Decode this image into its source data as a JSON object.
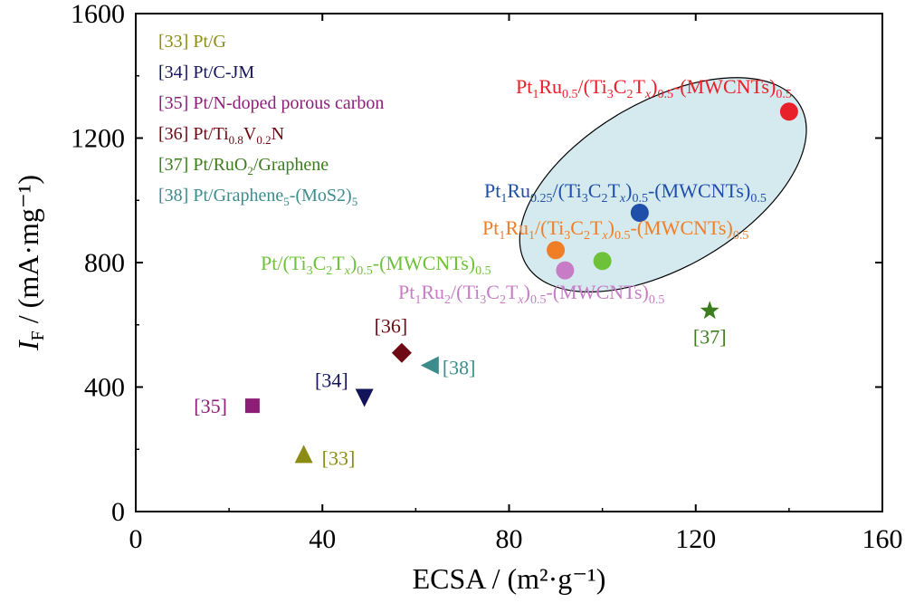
{
  "chart_data": {
    "type": "scatter",
    "title": "",
    "xlabel": "ECSA / (m²·g⁻¹)",
    "ylabel": "I_F / (mA·mg⁻¹)",
    "xlim": [
      0,
      160
    ],
    "ylim": [
      0,
      1600
    ],
    "x_ticks": [
      "0",
      "40",
      "80",
      "120",
      "160"
    ],
    "y_ticks": [
      "0",
      "400",
      "800",
      "1200",
      "1600"
    ],
    "grid": false,
    "legend_position": "top-left",
    "legend": [
      {
        "ref": "[33]",
        "name": "Pt/G",
        "color": "#8c8c14"
      },
      {
        "ref": "[34]",
        "name": "Pt/C-JM",
        "color": "#14145a"
      },
      {
        "ref": "[35]",
        "name": "Pt/N-doped porous carbon",
        "color": "#8c1e78"
      },
      {
        "ref": "[36]",
        "name": "Pt/Ti0.8V0.2N",
        "color": "#6e0a14"
      },
      {
        "ref": "[37]",
        "name": "Pt/RuO2/Graphene",
        "color": "#3c7d1e"
      },
      {
        "ref": "[38]",
        "name": "Pt/Graphene5-(MoS2)5",
        "color": "#3c8c8c"
      }
    ],
    "reference_points": [
      {
        "ref": "[33]",
        "x": 36,
        "y": 185,
        "marker": "triangle-up",
        "color": "#8c8c14",
        "label": "[33]"
      },
      {
        "ref": "[34]",
        "x": 49,
        "y": 365,
        "marker": "triangle-down",
        "color": "#14145a",
        "label": "[34]"
      },
      {
        "ref": "[35]",
        "x": 25,
        "y": 340,
        "marker": "square",
        "color": "#8c1e78",
        "label": "[35]"
      },
      {
        "ref": "[36]",
        "x": 57,
        "y": 510,
        "marker": "diamond",
        "color": "#6e0a14",
        "label": "[36]"
      },
      {
        "ref": "[37]",
        "x": 123,
        "y": 645,
        "marker": "star",
        "color": "#3c7d1e",
        "label": "[37]"
      },
      {
        "ref": "[38]",
        "x": 63,
        "y": 470,
        "marker": "triangle-left",
        "color": "#3c8c8c",
        "label": "[38]"
      }
    ],
    "this_work_points": [
      {
        "x": 140,
        "y": 1285,
        "color": "#e8202a",
        "label": "Pt1Ru0.5/(Ti3C2Tx)0.5-(MWCNTs)0.5"
      },
      {
        "x": 108,
        "y": 960,
        "color": "#1f4fa8",
        "label": "Pt1Ru0.25/(Ti3C2Tx)0.5-(MWCNTs)0.5"
      },
      {
        "x": 90,
        "y": 840,
        "color": "#f07e26",
        "label": "Pt1Ru1/(Ti3C2Tx)0.5-(MWCNTs)0.5"
      },
      {
        "x": 100,
        "y": 805,
        "color": "#6ec23a",
        "label": "Pt/(Ti3C2Tx)0.5-(MWCNTs)0.5"
      },
      {
        "x": 92,
        "y": 775,
        "color": "#c77cc5",
        "label": "Pt1Ru2/(Ti3C2Tx)0.5-(MWCNTs)0.5"
      }
    ],
    "highlight_ellipse_color": "#d5eaef"
  }
}
